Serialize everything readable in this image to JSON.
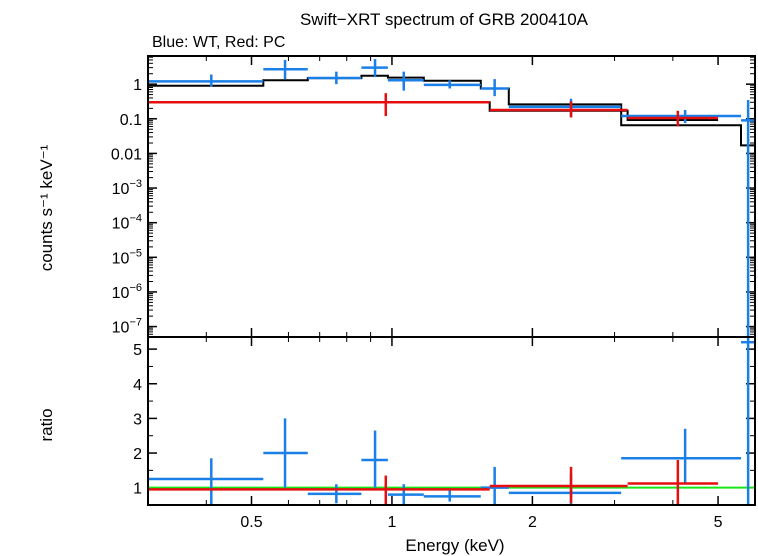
{
  "chart_data": {
    "title": "Swift−XRT spectrum of GRB 200410A",
    "subtitle": "Blue: WT, Red: PC",
    "colors": {
      "wt": "#1a7fe6",
      "pc": "#e60f0f",
      "model": "#000000",
      "unity": "#19e619"
    },
    "xlabel": "Energy (keV)",
    "x_scale": "log",
    "xlim": [
      0.3,
      6.0
    ],
    "x_ticks": [
      {
        "value": 0.5,
        "label": "0.5"
      },
      {
        "value": 1,
        "label": "1"
      },
      {
        "value": 2,
        "label": "2"
      },
      {
        "value": 5,
        "label": "5"
      }
    ],
    "panels": [
      {
        "type": "scatter",
        "name": "spectrum",
        "ylabel": "counts s⁻¹ keV⁻¹",
        "y_scale": "log",
        "ylim": [
          5e-08,
          6.5
        ],
        "y_ticks": [
          {
            "value": 1,
            "base": "1",
            "exp": ""
          },
          {
            "value": 0.1,
            "base": "0.1",
            "exp": ""
          },
          {
            "value": 0.01,
            "base": "0.01",
            "exp": ""
          },
          {
            "value": 0.001,
            "base": "10",
            "exp": "−3"
          },
          {
            "value": 0.0001,
            "base": "10",
            "exp": "−4"
          },
          {
            "value": 1e-05,
            "base": "10",
            "exp": "−5"
          },
          {
            "value": 1e-06,
            "base": "10",
            "exp": "−6"
          },
          {
            "value": 1e-07,
            "base": "10",
            "exp": "−7"
          }
        ],
        "series": [
          {
            "id": "wt",
            "points": [
              {
                "x": 0.41,
                "xlo": 0.3,
                "xhi": 0.53,
                "y": 1.2,
                "ylo": 0.85,
                "yhi": 1.9
              },
              {
                "x": 0.59,
                "xlo": 0.53,
                "xhi": 0.66,
                "y": 2.7,
                "ylo": 1.4,
                "yhi": 5.0
              },
              {
                "x": 0.76,
                "xlo": 0.66,
                "xhi": 0.86,
                "y": 1.5,
                "ylo": 1.0,
                "yhi": 2.3
              },
              {
                "x": 0.92,
                "xlo": 0.86,
                "xhi": 0.98,
                "y": 3.0,
                "ylo": 1.6,
                "yhi": 5.3
              },
              {
                "x": 1.06,
                "xlo": 0.98,
                "xhi": 1.17,
                "y": 1.3,
                "ylo": 0.65,
                "yhi": 2.3
              },
              {
                "x": 1.33,
                "xlo": 1.17,
                "xhi": 1.55,
                "y": 0.95,
                "ylo": 0.75,
                "yhi": 1.3
              },
              {
                "x": 1.66,
                "xlo": 1.55,
                "xhi": 1.78,
                "y": 0.75,
                "ylo": 0.45,
                "yhi": 1.4
              },
              {
                "x": 2.42,
                "xlo": 1.78,
                "xhi": 3.1,
                "y": 0.22,
                "ylo": 0.11,
                "yhi": 0.38
              },
              {
                "x": 4.25,
                "xlo": 3.1,
                "xhi": 5.6,
                "y": 0.12,
                "ylo": 0.075,
                "yhi": 0.18
              },
              {
                "x": 5.8,
                "xlo": 5.6,
                "xhi": 6.0,
                "y": 0.09,
                "ylo": 5e-08,
                "yhi": 0.35
              }
            ]
          },
          {
            "id": "pc",
            "points": [
              {
                "x": 0.97,
                "xlo": 0.3,
                "xhi": 1.62,
                "y": 0.3,
                "ylo": 0.12,
                "yhi": 0.55
              },
              {
                "x": 2.42,
                "xlo": 1.62,
                "xhi": 3.2,
                "y": 0.18,
                "ylo": 0.11,
                "yhi": 0.32
              },
              {
                "x": 4.1,
                "xlo": 3.2,
                "xhi": 5.0,
                "y": 0.105,
                "ylo": 0.06,
                "yhi": 0.17
              }
            ]
          }
        ],
        "models": [
          {
            "id": "wt",
            "steps": [
              {
                "x0": 0.3,
                "x1": 0.53,
                "y": 0.9
              },
              {
                "x0": 0.53,
                "x1": 0.66,
                "y": 1.3
              },
              {
                "x0": 0.66,
                "x1": 0.86,
                "y": 1.5
              },
              {
                "x0": 0.86,
                "x1": 0.98,
                "y": 1.75
              },
              {
                "x0": 0.98,
                "x1": 1.17,
                "y": 1.55
              },
              {
                "x0": 1.17,
                "x1": 1.55,
                "y": 1.25
              },
              {
                "x0": 1.55,
                "x1": 1.78,
                "y": 0.75
              },
              {
                "x0": 1.78,
                "x1": 3.1,
                "y": 0.26
              },
              {
                "x0": 3.1,
                "x1": 5.6,
                "y": 0.065
              },
              {
                "x0": 5.6,
                "x1": 6.0,
                "y": 0.017
              }
            ]
          },
          {
            "id": "pc",
            "steps": [
              {
                "x0": 0.3,
                "x1": 1.62,
                "y": 0.3
              },
              {
                "x0": 1.62,
                "x1": 3.2,
                "y": 0.17
              },
              {
                "x0": 3.2,
                "x1": 5.0,
                "y": 0.092
              }
            ]
          }
        ]
      },
      {
        "type": "scatter",
        "name": "ratio",
        "ylabel": "ratio",
        "y_scale": "linear",
        "ylim": [
          0.5,
          5.35
        ],
        "y_ticks": [
          {
            "value": 1,
            "base": "1",
            "exp": ""
          },
          {
            "value": 2,
            "base": "2",
            "exp": ""
          },
          {
            "value": 3,
            "base": "3",
            "exp": ""
          },
          {
            "value": 4,
            "base": "4",
            "exp": ""
          },
          {
            "value": 5,
            "base": "5",
            "exp": ""
          }
        ],
        "reference_line": 1.0,
        "series": [
          {
            "id": "wt",
            "points": [
              {
                "x": 0.41,
                "xlo": 0.3,
                "xhi": 0.53,
                "y": 1.25,
                "ylo": 0.5,
                "yhi": 1.85
              },
              {
                "x": 0.59,
                "xlo": 0.53,
                "xhi": 0.66,
                "y": 2.0,
                "ylo": 1.0,
                "yhi": 3.0
              },
              {
                "x": 0.76,
                "xlo": 0.66,
                "xhi": 0.86,
                "y": 0.82,
                "ylo": 0.55,
                "yhi": 1.1
              },
              {
                "x": 0.92,
                "xlo": 0.86,
                "xhi": 0.98,
                "y": 1.8,
                "ylo": 1.0,
                "yhi": 2.65
              },
              {
                "x": 1.06,
                "xlo": 0.98,
                "xhi": 1.17,
                "y": 0.8,
                "ylo": 0.5,
                "yhi": 1.1
              },
              {
                "x": 1.33,
                "xlo": 1.17,
                "xhi": 1.55,
                "y": 0.75,
                "ylo": 0.6,
                "yhi": 0.95
              },
              {
                "x": 1.66,
                "xlo": 1.55,
                "xhi": 1.78,
                "y": 1.0,
                "ylo": 0.5,
                "yhi": 1.6
              },
              {
                "x": 2.42,
                "xlo": 1.78,
                "xhi": 3.1,
                "y": 0.85,
                "ylo": 0.5,
                "yhi": 1.4
              },
              {
                "x": 4.25,
                "xlo": 3.1,
                "xhi": 5.6,
                "y": 1.85,
                "ylo": 1.15,
                "yhi": 2.7
              },
              {
                "x": 5.8,
                "xlo": 5.6,
                "xhi": 6.0,
                "y": 5.2,
                "ylo": 0.5,
                "yhi": 5.35
              }
            ]
          },
          {
            "id": "pc",
            "points": [
              {
                "x": 0.97,
                "xlo": 0.3,
                "xhi": 1.62,
                "y": 0.95,
                "ylo": 0.5,
                "yhi": 1.35
              },
              {
                "x": 2.42,
                "xlo": 1.62,
                "xhi": 3.2,
                "y": 1.05,
                "ylo": 0.55,
                "yhi": 1.6
              },
              {
                "x": 4.1,
                "xlo": 3.2,
                "xhi": 5.0,
                "y": 1.12,
                "ylo": 0.5,
                "yhi": 1.8
              }
            ]
          }
        ]
      }
    ]
  }
}
